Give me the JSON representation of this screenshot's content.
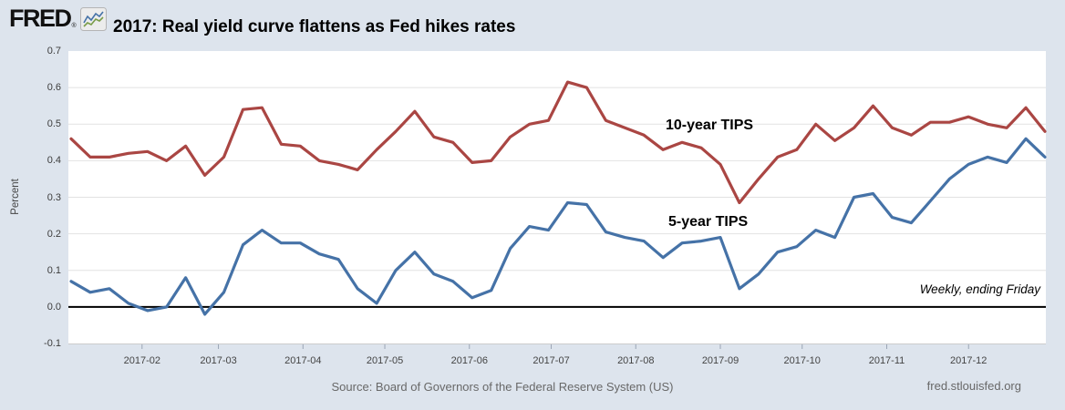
{
  "header": {
    "logo_text": "FRED",
    "registered": "®",
    "title": "2017: Real yield curve flattens as Fed hikes rates"
  },
  "chart_data": {
    "type": "line",
    "title": "2017: Real yield curve flattens as Fed hikes rates",
    "xlabel": "",
    "ylabel": "Percent",
    "ylim": [
      -0.1,
      0.7
    ],
    "grid": true,
    "legend_position": "inline-labels-on-plot",
    "frequency_note": "Weekly, ending Friday",
    "y_ticks": [
      "0.7",
      "0.6",
      "0.5",
      "0.4",
      "0.3",
      "0.2",
      "0.1",
      "0.0",
      "-0.1"
    ],
    "x_tick_labels": [
      "2017-02",
      "2017-03",
      "2017-04",
      "2017-05",
      "2017-06",
      "2017-07",
      "2017-08",
      "2017-09",
      "2017-10",
      "2017-11",
      "2017-12"
    ],
    "x": [
      "2017-01-06",
      "2017-01-13",
      "2017-01-20",
      "2017-01-27",
      "2017-02-03",
      "2017-02-10",
      "2017-02-17",
      "2017-02-24",
      "2017-03-03",
      "2017-03-10",
      "2017-03-17",
      "2017-03-24",
      "2017-03-31",
      "2017-04-07",
      "2017-04-14",
      "2017-04-21",
      "2017-04-28",
      "2017-05-05",
      "2017-05-12",
      "2017-05-19",
      "2017-05-26",
      "2017-06-02",
      "2017-06-09",
      "2017-06-16",
      "2017-06-23",
      "2017-06-30",
      "2017-07-07",
      "2017-07-14",
      "2017-07-21",
      "2017-07-28",
      "2017-08-04",
      "2017-08-11",
      "2017-08-18",
      "2017-08-25",
      "2017-09-01",
      "2017-09-08",
      "2017-09-15",
      "2017-09-22",
      "2017-09-29",
      "2017-10-06",
      "2017-10-13",
      "2017-10-20",
      "2017-10-27",
      "2017-11-03",
      "2017-11-10",
      "2017-11-17",
      "2017-11-24",
      "2017-12-01",
      "2017-12-08",
      "2017-12-15",
      "2017-12-22",
      "2017-12-29"
    ],
    "series": [
      {
        "name": "10-year TIPS",
        "color": "#aa4643",
        "values": [
          0.46,
          0.41,
          0.41,
          0.42,
          0.425,
          0.4,
          0.44,
          0.36,
          0.41,
          0.54,
          0.545,
          0.445,
          0.44,
          0.4,
          0.39,
          0.375,
          0.43,
          0.48,
          0.535,
          0.465,
          0.45,
          0.395,
          0.4,
          0.465,
          0.5,
          0.51,
          0.615,
          0.6,
          0.51,
          0.49,
          0.47,
          0.43,
          0.45,
          0.435,
          0.39,
          0.285,
          0.35,
          0.41,
          0.43,
          0.5,
          0.455,
          0.49,
          0.55,
          0.49,
          0.47,
          0.505,
          0.505,
          0.52,
          0.5,
          0.49,
          0.545,
          0.48
        ]
      },
      {
        "name": "5-year TIPS",
        "color": "#4572a7",
        "values": [
          0.07,
          0.04,
          0.05,
          0.01,
          -0.01,
          0.0,
          0.08,
          -0.02,
          0.04,
          0.17,
          0.21,
          0.175,
          0.175,
          0.145,
          0.13,
          0.05,
          0.01,
          0.1,
          0.15,
          0.09,
          0.07,
          0.025,
          0.045,
          0.16,
          0.22,
          0.21,
          0.285,
          0.28,
          0.205,
          0.19,
          0.18,
          0.135,
          0.175,
          0.18,
          0.19,
          0.05,
          0.09,
          0.15,
          0.165,
          0.21,
          0.19,
          0.3,
          0.31,
          0.245,
          0.23,
          0.29,
          0.35,
          0.39,
          0.41,
          0.395,
          0.46,
          0.41
        ]
      }
    ],
    "colors": {
      "background": "#dde4ed",
      "plot_background": "#ffffff",
      "gridline": "#e2e2e2",
      "zero_line": "#000000",
      "axis_line": "#cccccc",
      "tick_mark": "#9aa5b5",
      "tick_label": "#3c3c3c"
    }
  },
  "footer": {
    "source": "Source: Board of Governors of the Federal Reserve System (US)",
    "site": "fred.stlouisfed.org"
  }
}
